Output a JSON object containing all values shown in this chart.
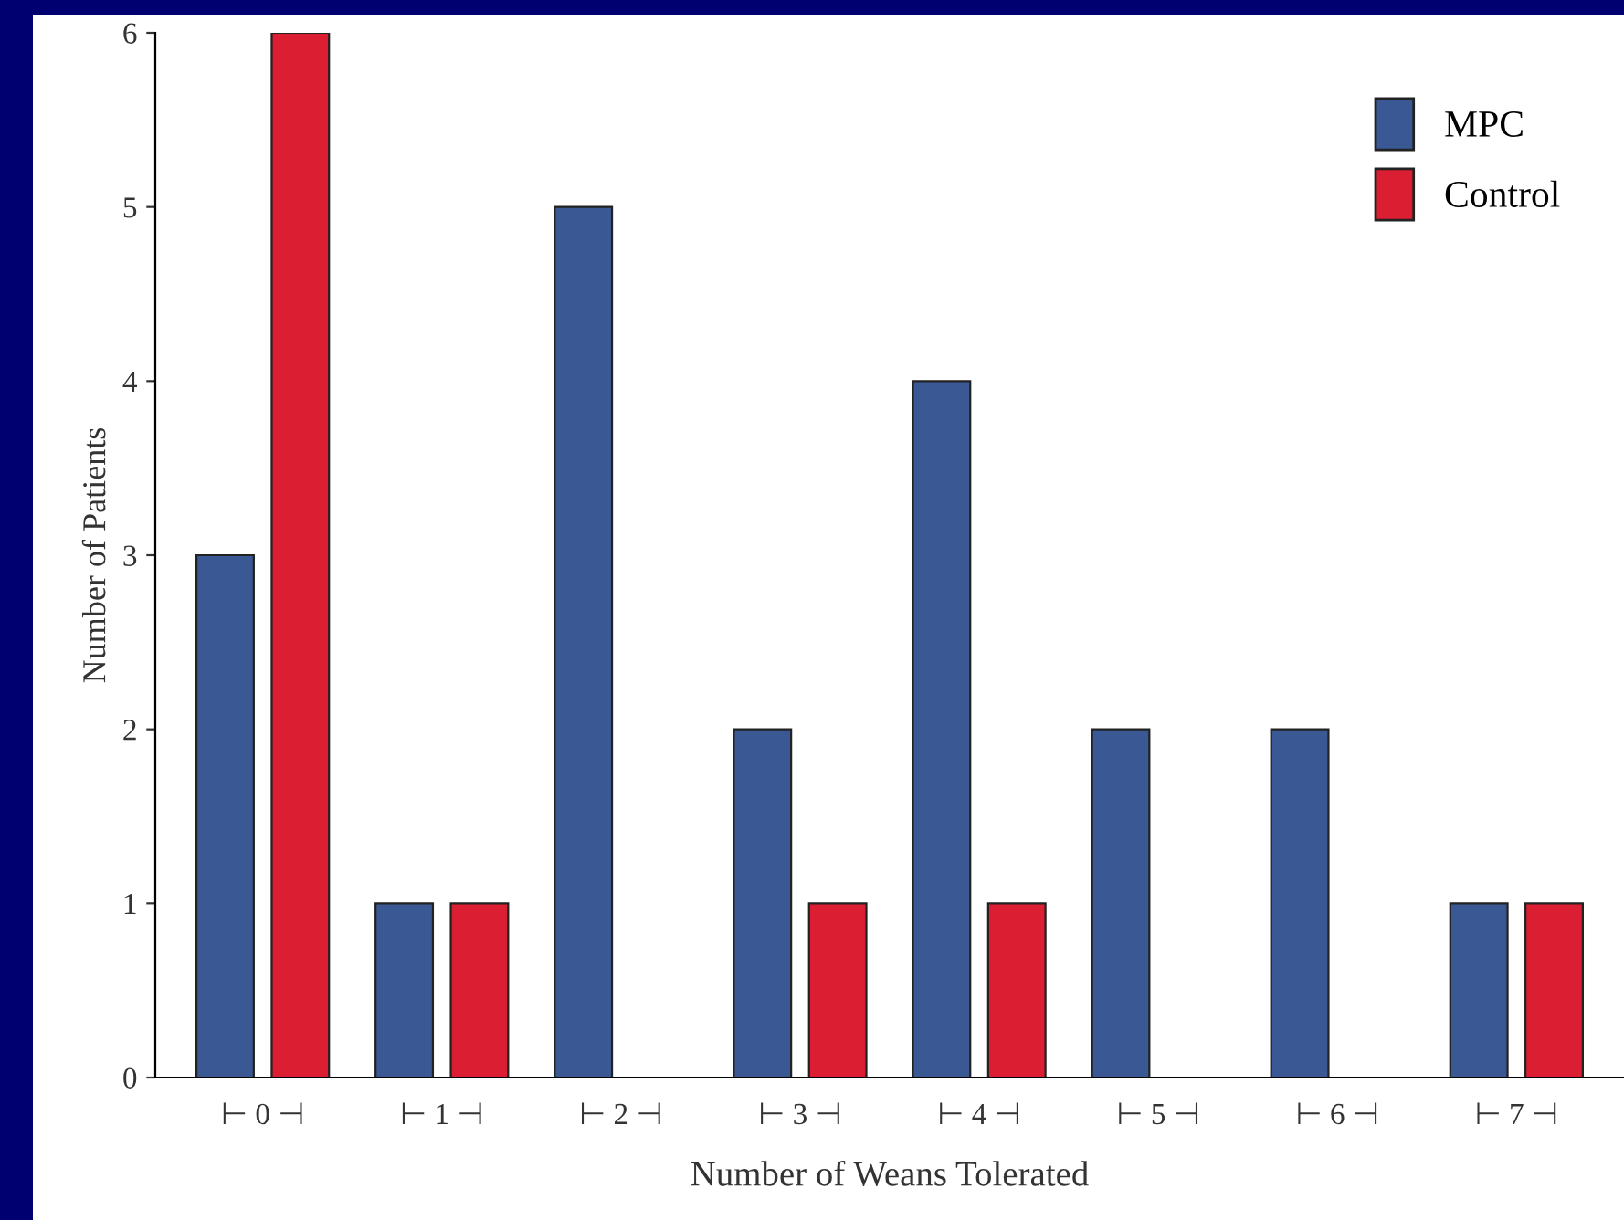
{
  "chart_data": {
    "type": "bar",
    "xlabel": "Number of Weans Tolerated",
    "ylabel": "Number of Patients",
    "categories": [
      "⊢ 0 ⊣",
      "⊢ 1 ⊣",
      "⊢ 2 ⊣",
      "⊢ 3 ⊣",
      "⊢ 4 ⊣",
      "⊢ 5 ⊣",
      "⊢ 6 ⊣",
      "⊢ 7 ⊣"
    ],
    "series": [
      {
        "name": "MPC",
        "color": "#3a5894",
        "values": [
          3,
          1,
          5,
          2,
          4,
          2,
          2,
          1
        ]
      },
      {
        "name": "Control",
        "color": "#dc1e32",
        "values": [
          6,
          1,
          0,
          1,
          1,
          0,
          0,
          1
        ]
      }
    ],
    "ylim": [
      0,
      6
    ],
    "yticks": [
      0,
      1,
      2,
      3,
      4,
      5,
      6
    ],
    "grid": false,
    "legend": "top right"
  }
}
